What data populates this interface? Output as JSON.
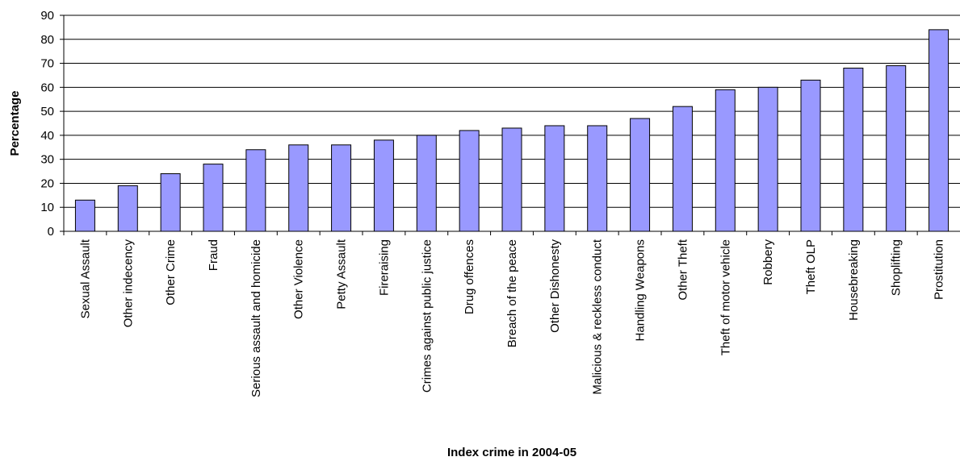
{
  "chart_data": {
    "type": "bar",
    "title": "",
    "xlabel": "Index crime in 2004-05",
    "ylabel": "Percentage",
    "ylim": [
      0,
      90
    ],
    "yticks": [
      "0",
      "10",
      "20",
      "30",
      "40",
      "50",
      "60",
      "70",
      "80",
      "90"
    ],
    "grid": "horizontal",
    "legend": "none",
    "categories": [
      "Sexual Assault",
      "Other indecency",
      "Other Crime",
      "Fraud",
      "Serious assault and homicide",
      "Other Violence",
      "Petty Assault",
      "Fireraising",
      "Crimes against public justice",
      "Drug offences",
      "Breach of the peace",
      "Other Dishonesty",
      "Malicious & reckless conduct",
      "Handling Weapons",
      "Other Theft",
      "Theft of motor vehicle",
      "Robbery",
      "Theft OLP",
      "Housebreaking",
      "Shoplifting",
      "Prostitution"
    ],
    "values": [
      13,
      19,
      24,
      28,
      34,
      36,
      36,
      38,
      40,
      42,
      43,
      44,
      44,
      47,
      52,
      59,
      60,
      63,
      68,
      69,
      84
    ],
    "colors": {
      "bar_fill": "#9999ff",
      "bar_stroke": "#000000",
      "grid": "#000000"
    }
  }
}
